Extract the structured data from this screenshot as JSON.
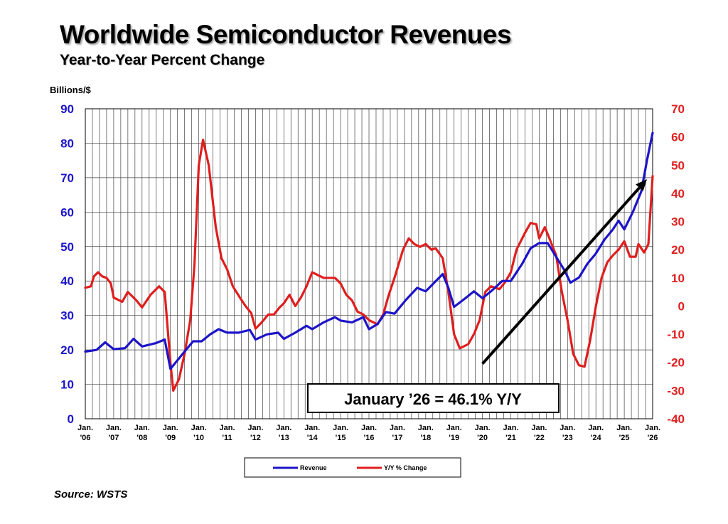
{
  "title": "Worldwide Semiconductor Revenues",
  "subtitle": "Year-to-Year Percent Change",
  "source": "Source: WSTS",
  "colors": {
    "revenue": "#1c14c8",
    "yoy": "#e01e1e",
    "arrow": "#000000",
    "grid": "#444444"
  },
  "chart_data": {
    "type": "line",
    "title": "Worldwide Semiconductor Revenues",
    "subtitle": "Year-to-Year Percent Change",
    "ylabel_left": "Billions/$",
    "ylim_left": [
      0,
      90
    ],
    "ylim_right": [
      -40,
      70
    ],
    "yticks_left": [
      "0",
      "10",
      "20",
      "30",
      "40",
      "50",
      "60",
      "70",
      "80",
      "90"
    ],
    "yticks_right": [
      "-40",
      "-30",
      "-20",
      "-10",
      "0",
      "10",
      "20",
      "30",
      "40",
      "50",
      "60",
      "70"
    ],
    "xticks": [
      {
        "top": "Jan.",
        "bottom": "'06"
      },
      {
        "top": "Jan.",
        "bottom": "'07"
      },
      {
        "top": "Jan.",
        "bottom": "'08"
      },
      {
        "top": "Jan.",
        "bottom": "'09"
      },
      {
        "top": "Jan.",
        "bottom": "'10"
      },
      {
        "top": "Jan.",
        "bottom": "'11"
      },
      {
        "top": "Jan.",
        "bottom": "'12"
      },
      {
        "top": "Jan.",
        "bottom": "'13"
      },
      {
        "top": "Jan.",
        "bottom": "'14"
      },
      {
        "top": "Jan.",
        "bottom": "'15"
      },
      {
        "top": "Jan.",
        "bottom": "'16"
      },
      {
        "top": "Jan.",
        "bottom": "'17"
      },
      {
        "top": "Jan.",
        "bottom": "'18"
      },
      {
        "top": "Jan.",
        "bottom": "'19"
      },
      {
        "top": "Jan.",
        "bottom": "'20"
      },
      {
        "top": "Jan.",
        "bottom": "'21"
      },
      {
        "top": "Jan.",
        "bottom": "'22"
      },
      {
        "top": "Jan.",
        "bottom": "'23"
      },
      {
        "top": "Jan.",
        "bottom": "'24"
      },
      {
        "top": "Jan.",
        "bottom": "'25"
      },
      {
        "top": "Jan.",
        "bottom": "'26"
      }
    ],
    "legend": [
      "Revenue",
      "Y/Y % Change"
    ],
    "annotation": "January ’26 = 46.1% Y/Y",
    "series": [
      {
        "name": "Revenue",
        "axis": "left",
        "points": [
          [
            2006.0,
            19.5
          ],
          [
            2006.4,
            20.0
          ],
          [
            2006.7,
            22.2
          ],
          [
            2007.0,
            20.2
          ],
          [
            2007.4,
            20.5
          ],
          [
            2007.7,
            23.2
          ],
          [
            2008.0,
            21.0
          ],
          [
            2008.5,
            22.0
          ],
          [
            2008.8,
            23.0
          ],
          [
            2009.0,
            14.5
          ],
          [
            2009.3,
            17.5
          ],
          [
            2009.6,
            20.5
          ],
          [
            2009.8,
            22.5
          ],
          [
            2010.1,
            22.5
          ],
          [
            2010.4,
            24.5
          ],
          [
            2010.7,
            26.0
          ],
          [
            2011.0,
            25.0
          ],
          [
            2011.4,
            25.0
          ],
          [
            2011.8,
            25.8
          ],
          [
            2012.0,
            23.0
          ],
          [
            2012.4,
            24.5
          ],
          [
            2012.8,
            25.0
          ],
          [
            2013.0,
            23.2
          ],
          [
            2013.4,
            25.0
          ],
          [
            2013.8,
            27.0
          ],
          [
            2014.0,
            26.0
          ],
          [
            2014.4,
            28.0
          ],
          [
            2014.8,
            29.5
          ],
          [
            2015.0,
            28.5
          ],
          [
            2015.4,
            28.0
          ],
          [
            2015.8,
            29.5
          ],
          [
            2016.0,
            26.0
          ],
          [
            2016.3,
            27.5
          ],
          [
            2016.6,
            31.0
          ],
          [
            2016.9,
            30.5
          ],
          [
            2017.3,
            34.5
          ],
          [
            2017.7,
            38.0
          ],
          [
            2018.0,
            37.0
          ],
          [
            2018.3,
            39.5
          ],
          [
            2018.6,
            42.0
          ],
          [
            2018.8,
            38.0
          ],
          [
            2019.0,
            32.5
          ],
          [
            2019.4,
            35.0
          ],
          [
            2019.7,
            37.0
          ],
          [
            2020.0,
            35.0
          ],
          [
            2020.3,
            37.0
          ],
          [
            2020.7,
            40.0
          ],
          [
            2021.0,
            40.0
          ],
          [
            2021.4,
            45.0
          ],
          [
            2021.7,
            49.5
          ],
          [
            2022.0,
            51.0
          ],
          [
            2022.3,
            51.0
          ],
          [
            2022.6,
            47.0
          ],
          [
            2022.9,
            43.0
          ],
          [
            2023.1,
            39.5
          ],
          [
            2023.4,
            41.0
          ],
          [
            2023.7,
            45.0
          ],
          [
            2024.0,
            48.0
          ],
          [
            2024.3,
            52.0
          ],
          [
            2024.6,
            55.0
          ],
          [
            2024.8,
            57.5
          ],
          [
            2025.0,
            55.0
          ],
          [
            2025.3,
            60.0
          ],
          [
            2025.6,
            66.0
          ],
          [
            2025.8,
            75.0
          ],
          [
            2026.0,
            83.0
          ]
        ]
      },
      {
        "name": "Y/Y % Change",
        "axis": "right",
        "points": [
          [
            2006.0,
            6.5
          ],
          [
            2006.2,
            7.0
          ],
          [
            2006.3,
            10.5
          ],
          [
            2006.45,
            12.0
          ],
          [
            2006.6,
            10.5
          ],
          [
            2006.75,
            10.0
          ],
          [
            2006.9,
            8.0
          ],
          [
            2007.0,
            3.0
          ],
          [
            2007.3,
            1.5
          ],
          [
            2007.5,
            5.0
          ],
          [
            2007.8,
            2.0
          ],
          [
            2008.0,
            -0.5
          ],
          [
            2008.3,
            4.0
          ],
          [
            2008.6,
            7.0
          ],
          [
            2008.8,
            5.0
          ],
          [
            2009.0,
            -20.0
          ],
          [
            2009.1,
            -30.0
          ],
          [
            2009.3,
            -26.0
          ],
          [
            2009.5,
            -17.0
          ],
          [
            2009.7,
            -5.0
          ],
          [
            2009.85,
            15.0
          ],
          [
            2010.0,
            50.0
          ],
          [
            2010.15,
            59.0
          ],
          [
            2010.35,
            50.0
          ],
          [
            2010.6,
            28.0
          ],
          [
            2010.8,
            17.0
          ],
          [
            2011.0,
            13.0
          ],
          [
            2011.2,
            7.0
          ],
          [
            2011.45,
            3.0
          ],
          [
            2011.65,
            0.0
          ],
          [
            2011.85,
            -2.5
          ],
          [
            2012.0,
            -8.0
          ],
          [
            2012.2,
            -6.0
          ],
          [
            2012.45,
            -3.0
          ],
          [
            2012.65,
            -3.0
          ],
          [
            2012.85,
            -0.5
          ],
          [
            2013.0,
            1.0
          ],
          [
            2013.2,
            4.0
          ],
          [
            2013.4,
            0.0
          ],
          [
            2013.6,
            3.0
          ],
          [
            2013.8,
            7.0
          ],
          [
            2014.0,
            12.0
          ],
          [
            2014.2,
            11.0
          ],
          [
            2014.4,
            10.0
          ],
          [
            2014.6,
            10.0
          ],
          [
            2014.8,
            10.0
          ],
          [
            2015.0,
            8.0
          ],
          [
            2015.2,
            4.0
          ],
          [
            2015.4,
            2.0
          ],
          [
            2015.6,
            -2.0
          ],
          [
            2015.8,
            -3.0
          ],
          [
            2016.0,
            -5.0
          ],
          [
            2016.3,
            -6.5
          ],
          [
            2016.5,
            -3.0
          ],
          [
            2016.7,
            4.0
          ],
          [
            2016.9,
            10.0
          ],
          [
            2017.2,
            20.0
          ],
          [
            2017.4,
            24.0
          ],
          [
            2017.6,
            22.0
          ],
          [
            2017.8,
            21.0
          ],
          [
            2018.0,
            22.0
          ],
          [
            2018.2,
            20.0
          ],
          [
            2018.35,
            20.5
          ],
          [
            2018.6,
            17.0
          ],
          [
            2018.8,
            5.0
          ],
          [
            2019.0,
            -10.0
          ],
          [
            2019.2,
            -15.0
          ],
          [
            2019.5,
            -13.5
          ],
          [
            2019.7,
            -10.0
          ],
          [
            2019.9,
            -5.0
          ],
          [
            2020.1,
            5.0
          ],
          [
            2020.3,
            7.0
          ],
          [
            2020.6,
            6.0
          ],
          [
            2020.8,
            8.5
          ],
          [
            2021.0,
            12.0
          ],
          [
            2021.2,
            20.0
          ],
          [
            2021.5,
            26.0
          ],
          [
            2021.7,
            29.5
          ],
          [
            2021.9,
            29.0
          ],
          [
            2022.0,
            24.0
          ],
          [
            2022.2,
            28.0
          ],
          [
            2022.4,
            23.0
          ],
          [
            2022.6,
            18.0
          ],
          [
            2022.8,
            5.0
          ],
          [
            2023.0,
            -5.0
          ],
          [
            2023.2,
            -17.0
          ],
          [
            2023.4,
            -21.0
          ],
          [
            2023.6,
            -21.5
          ],
          [
            2023.8,
            -12.0
          ],
          [
            2024.0,
            0.0
          ],
          [
            2024.2,
            10.0
          ],
          [
            2024.4,
            15.5
          ],
          [
            2024.6,
            18.0
          ],
          [
            2024.8,
            20.0
          ],
          [
            2025.0,
            23.0
          ],
          [
            2025.2,
            17.5
          ],
          [
            2025.4,
            17.5
          ],
          [
            2025.5,
            22.0
          ],
          [
            2025.7,
            19.0
          ],
          [
            2025.85,
            22.0
          ],
          [
            2026.0,
            46.1
          ]
        ]
      }
    ],
    "trend_arrow": {
      "from": [
        2020.0,
        -20.5
      ],
      "to": [
        2025.8,
        45.0
      ],
      "axis": "right"
    }
  }
}
